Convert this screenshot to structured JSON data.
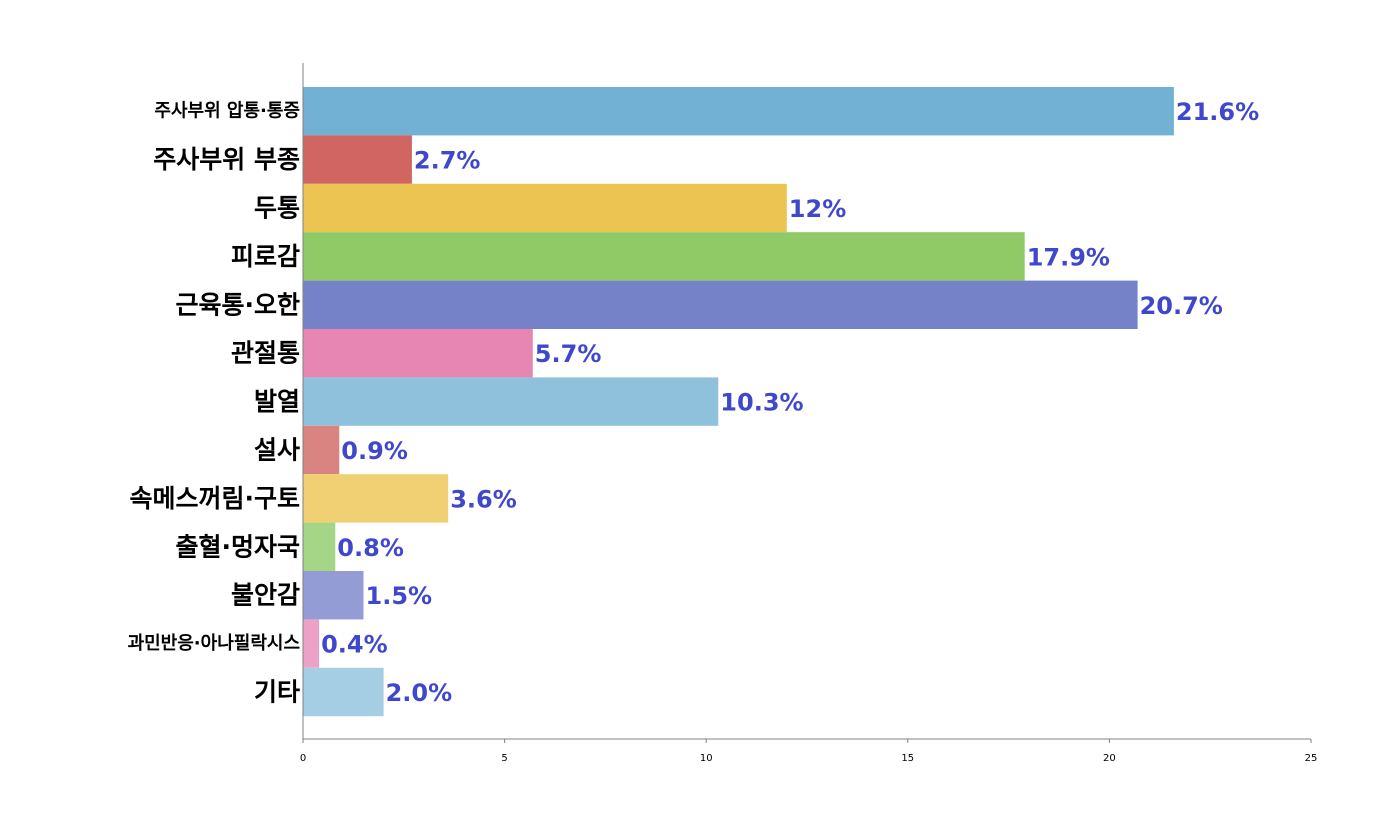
{
  "chart_data": {
    "type": "bar",
    "orientation": "horizontal",
    "categories": [
      "주사부위 압통·통증",
      "주사부위 부종",
      "두통",
      "피로감",
      "근육통·오한",
      "관절통",
      "발열",
      "설사",
      "속메스꺼림·구토",
      "출혈·멍자국",
      "불안감",
      "과민반응·아나필락시스",
      "기타"
    ],
    "values": [
      21.6,
      2.7,
      12,
      17.9,
      20.7,
      5.7,
      10.3,
      0.9,
      3.6,
      0.8,
      1.5,
      0.4,
      2.0
    ],
    "value_labels": [
      "21.6%",
      "2.7%",
      "12%",
      "17.9%",
      "20.7%",
      "5.7%",
      "10.3%",
      "0.9%",
      "3.6%",
      "0.8%",
      "1.5%",
      "0.4%",
      "2.0%"
    ],
    "colors": [
      "#72b1d3",
      "#d06561",
      "#ecc451",
      "#8fca67",
      "#7682c7",
      "#e786b3",
      "#90c1dc",
      "#d98481",
      "#f0d073",
      "#a5d587",
      "#939cd5",
      "#eca2c7",
      "#a5cde3"
    ],
    "value_label_color": "#3f48cc",
    "xlim": [
      0,
      25
    ],
    "xticks": [
      0,
      5,
      10,
      15,
      20,
      25
    ],
    "title": "",
    "xlabel": "",
    "ylabel": "",
    "grid": false,
    "legend": "none"
  }
}
